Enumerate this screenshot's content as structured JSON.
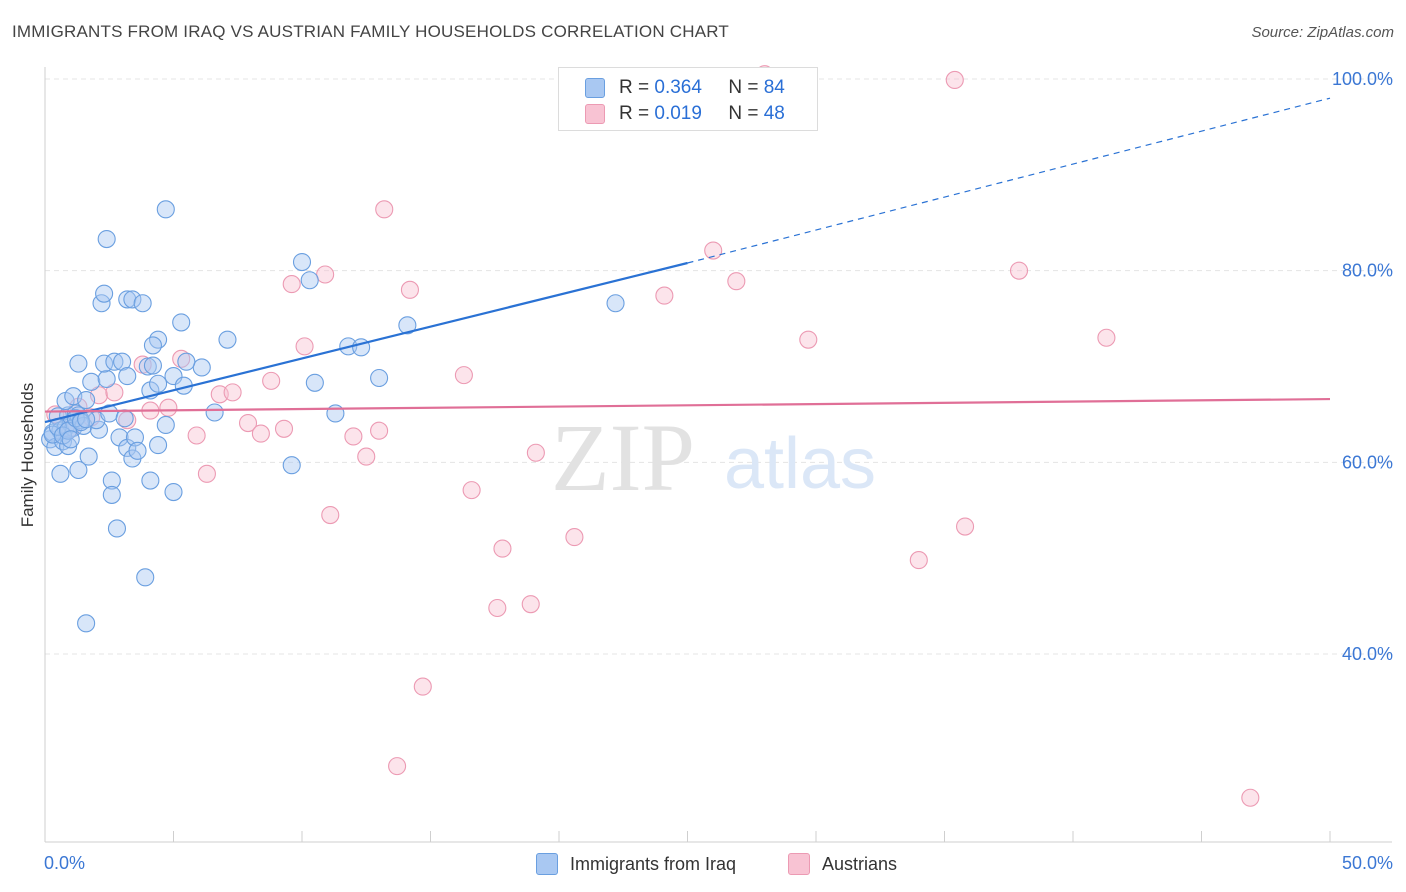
{
  "title": "IMMIGRANTS FROM IRAQ VS AUSTRIAN FAMILY HOUSEHOLDS CORRELATION CHART",
  "source": "Source: ZipAtlas.com",
  "watermark": {
    "zip": "ZIP",
    "atlas": "atlas"
  },
  "legend_top": [
    {
      "r_label": "R =",
      "r_value": "0.364",
      "n_label": "N =",
      "n_value": "84"
    },
    {
      "r_label": "R =",
      "r_value": "0.019",
      "n_label": "N =",
      "n_value": "48"
    }
  ],
  "chart_data": {
    "type": "scatter",
    "title": "IMMIGRANTS FROM IRAQ VS AUSTRIAN FAMILY HOUSEHOLDS CORRELATION CHART",
    "xlabel": "",
    "ylabel": "Family Households",
    "xlim": [
      0,
      50
    ],
    "ylim": [
      20,
      102
    ],
    "x_tick_labels": [
      "0.0%",
      "50.0%"
    ],
    "y_tick_labels": [
      {
        "value": 40,
        "label": "40.0%"
      },
      {
        "value": 60,
        "label": "60.0%"
      },
      {
        "value": 80,
        "label": "80.0%"
      },
      {
        "value": 100,
        "label": "100.0%"
      }
    ],
    "legend": "bottom-center",
    "grid": true,
    "colors": {
      "iraq_fill": "#a9c8f2",
      "iraq_stroke": "#6a9fe0",
      "iraq_line": "#2a72d4",
      "austrian_fill": "#f8c3d3",
      "austrian_stroke": "#ec9ab3",
      "austrian_line": "#e06f97"
    },
    "series": [
      {
        "name": "Immigrants from Iraq",
        "r": 0.364,
        "n": 84,
        "trend": {
          "x0": 0,
          "y0": 64.2,
          "x1": 25,
          "y1": 80.8,
          "dashed_to_x": 50,
          "dashed_to_y": 98.0
        },
        "points": [
          [
            0.2,
            62.4
          ],
          [
            0.3,
            63.1
          ],
          [
            0.4,
            61.6
          ],
          [
            0.5,
            64.8
          ],
          [
            0.6,
            63.3
          ],
          [
            0.7,
            62.2
          ],
          [
            0.8,
            63.6
          ],
          [
            0.9,
            64.9
          ],
          [
            1.0,
            64.0
          ],
          [
            1.1,
            63.6
          ],
          [
            1.2,
            65.1
          ],
          [
            1.3,
            64.9
          ],
          [
            1.4,
            64.4
          ],
          [
            1.5,
            63.8
          ],
          [
            0.6,
            58.8
          ],
          [
            0.9,
            61.7
          ],
          [
            1.3,
            59.2
          ],
          [
            1.7,
            60.6
          ],
          [
            2.1,
            63.4
          ],
          [
            0.8,
            66.4
          ],
          [
            1.1,
            66.9
          ],
          [
            1.6,
            66.5
          ],
          [
            1.8,
            68.4
          ],
          [
            2.4,
            68.7
          ],
          [
            1.3,
            70.3
          ],
          [
            2.3,
            70.3
          ],
          [
            2.7,
            70.5
          ],
          [
            3.0,
            70.5
          ],
          [
            3.2,
            69.0
          ],
          [
            4.0,
            70.0
          ],
          [
            4.1,
            67.5
          ],
          [
            4.4,
            68.2
          ],
          [
            4.2,
            70.1
          ],
          [
            5.0,
            69.0
          ],
          [
            5.4,
            68.0
          ],
          [
            6.1,
            69.9
          ],
          [
            5.5,
            70.5
          ],
          [
            4.4,
            72.8
          ],
          [
            4.2,
            72.2
          ],
          [
            5.3,
            74.6
          ],
          [
            2.2,
            76.6
          ],
          [
            2.3,
            77.6
          ],
          [
            3.2,
            77.0
          ],
          [
            3.4,
            77.0
          ],
          [
            3.8,
            76.6
          ],
          [
            2.4,
            83.3
          ],
          [
            4.7,
            86.4
          ],
          [
            7.1,
            72.8
          ],
          [
            6.6,
            65.2
          ],
          [
            2.0,
            64.4
          ],
          [
            2.5,
            65.1
          ],
          [
            2.9,
            62.6
          ],
          [
            3.2,
            61.5
          ],
          [
            3.4,
            60.4
          ],
          [
            3.5,
            62.6
          ],
          [
            3.6,
            61.2
          ],
          [
            4.1,
            58.1
          ],
          [
            4.4,
            61.8
          ],
          [
            5.0,
            56.9
          ],
          [
            4.7,
            63.9
          ],
          [
            2.6,
            58.1
          ],
          [
            2.6,
            56.6
          ],
          [
            2.8,
            53.1
          ],
          [
            3.9,
            48.0
          ],
          [
            1.6,
            43.2
          ],
          [
            9.6,
            59.7
          ],
          [
            10.0,
            80.9
          ],
          [
            10.3,
            79.0
          ],
          [
            10.5,
            68.3
          ],
          [
            11.3,
            65.1
          ],
          [
            11.8,
            72.1
          ],
          [
            12.3,
            72.0
          ],
          [
            13.0,
            68.8
          ],
          [
            14.1,
            74.3
          ],
          [
            22.2,
            76.6
          ],
          [
            0.3,
            62.9
          ],
          [
            0.5,
            63.7
          ],
          [
            0.7,
            62.8
          ],
          [
            0.9,
            63.3
          ],
          [
            1.0,
            62.4
          ],
          [
            1.2,
            64.6
          ],
          [
            1.4,
            64.2
          ],
          [
            1.6,
            64.5
          ],
          [
            3.1,
            64.6
          ]
        ]
      },
      {
        "name": "Austrians",
        "r": 0.019,
        "n": 48,
        "trend": {
          "x0": 0,
          "y0": 65.3,
          "x1": 50,
          "y1": 66.6
        },
        "points": [
          [
            0.4,
            65.0
          ],
          [
            1.0,
            63.5
          ],
          [
            1.3,
            65.8
          ],
          [
            1.8,
            64.7
          ],
          [
            2.1,
            67.0
          ],
          [
            2.7,
            67.3
          ],
          [
            3.2,
            64.4
          ],
          [
            3.8,
            70.2
          ],
          [
            4.1,
            65.4
          ],
          [
            4.8,
            65.7
          ],
          [
            5.3,
            70.8
          ],
          [
            5.9,
            62.8
          ],
          [
            6.3,
            58.8
          ],
          [
            6.8,
            67.1
          ],
          [
            7.3,
            67.3
          ],
          [
            7.9,
            64.1
          ],
          [
            8.4,
            63.0
          ],
          [
            8.8,
            68.5
          ],
          [
            9.3,
            63.5
          ],
          [
            9.6,
            78.6
          ],
          [
            10.1,
            72.1
          ],
          [
            10.9,
            79.6
          ],
          [
            11.1,
            54.5
          ],
          [
            12.0,
            62.7
          ],
          [
            12.5,
            60.6
          ],
          [
            13.0,
            63.3
          ],
          [
            13.2,
            86.4
          ],
          [
            14.2,
            78.0
          ],
          [
            14.7,
            36.6
          ],
          [
            16.3,
            69.1
          ],
          [
            16.6,
            57.1
          ],
          [
            17.8,
            51.0
          ],
          [
            17.6,
            44.8
          ],
          [
            18.9,
            45.2
          ],
          [
            19.1,
            61.0
          ],
          [
            20.6,
            52.2
          ],
          [
            24.1,
            77.4
          ],
          [
            26.0,
            82.1
          ],
          [
            26.9,
            78.9
          ],
          [
            29.7,
            72.8
          ],
          [
            34.0,
            49.8
          ],
          [
            35.4,
            99.9
          ],
          [
            35.8,
            53.3
          ],
          [
            37.9,
            80.0
          ],
          [
            41.3,
            73.0
          ],
          [
            46.9,
            25.0
          ],
          [
            13.7,
            28.3
          ],
          [
            28.0,
            100.5
          ]
        ]
      }
    ]
  },
  "legend_bottom": [
    {
      "label": "Immigrants from Iraq"
    },
    {
      "label": "Austrians"
    }
  ]
}
